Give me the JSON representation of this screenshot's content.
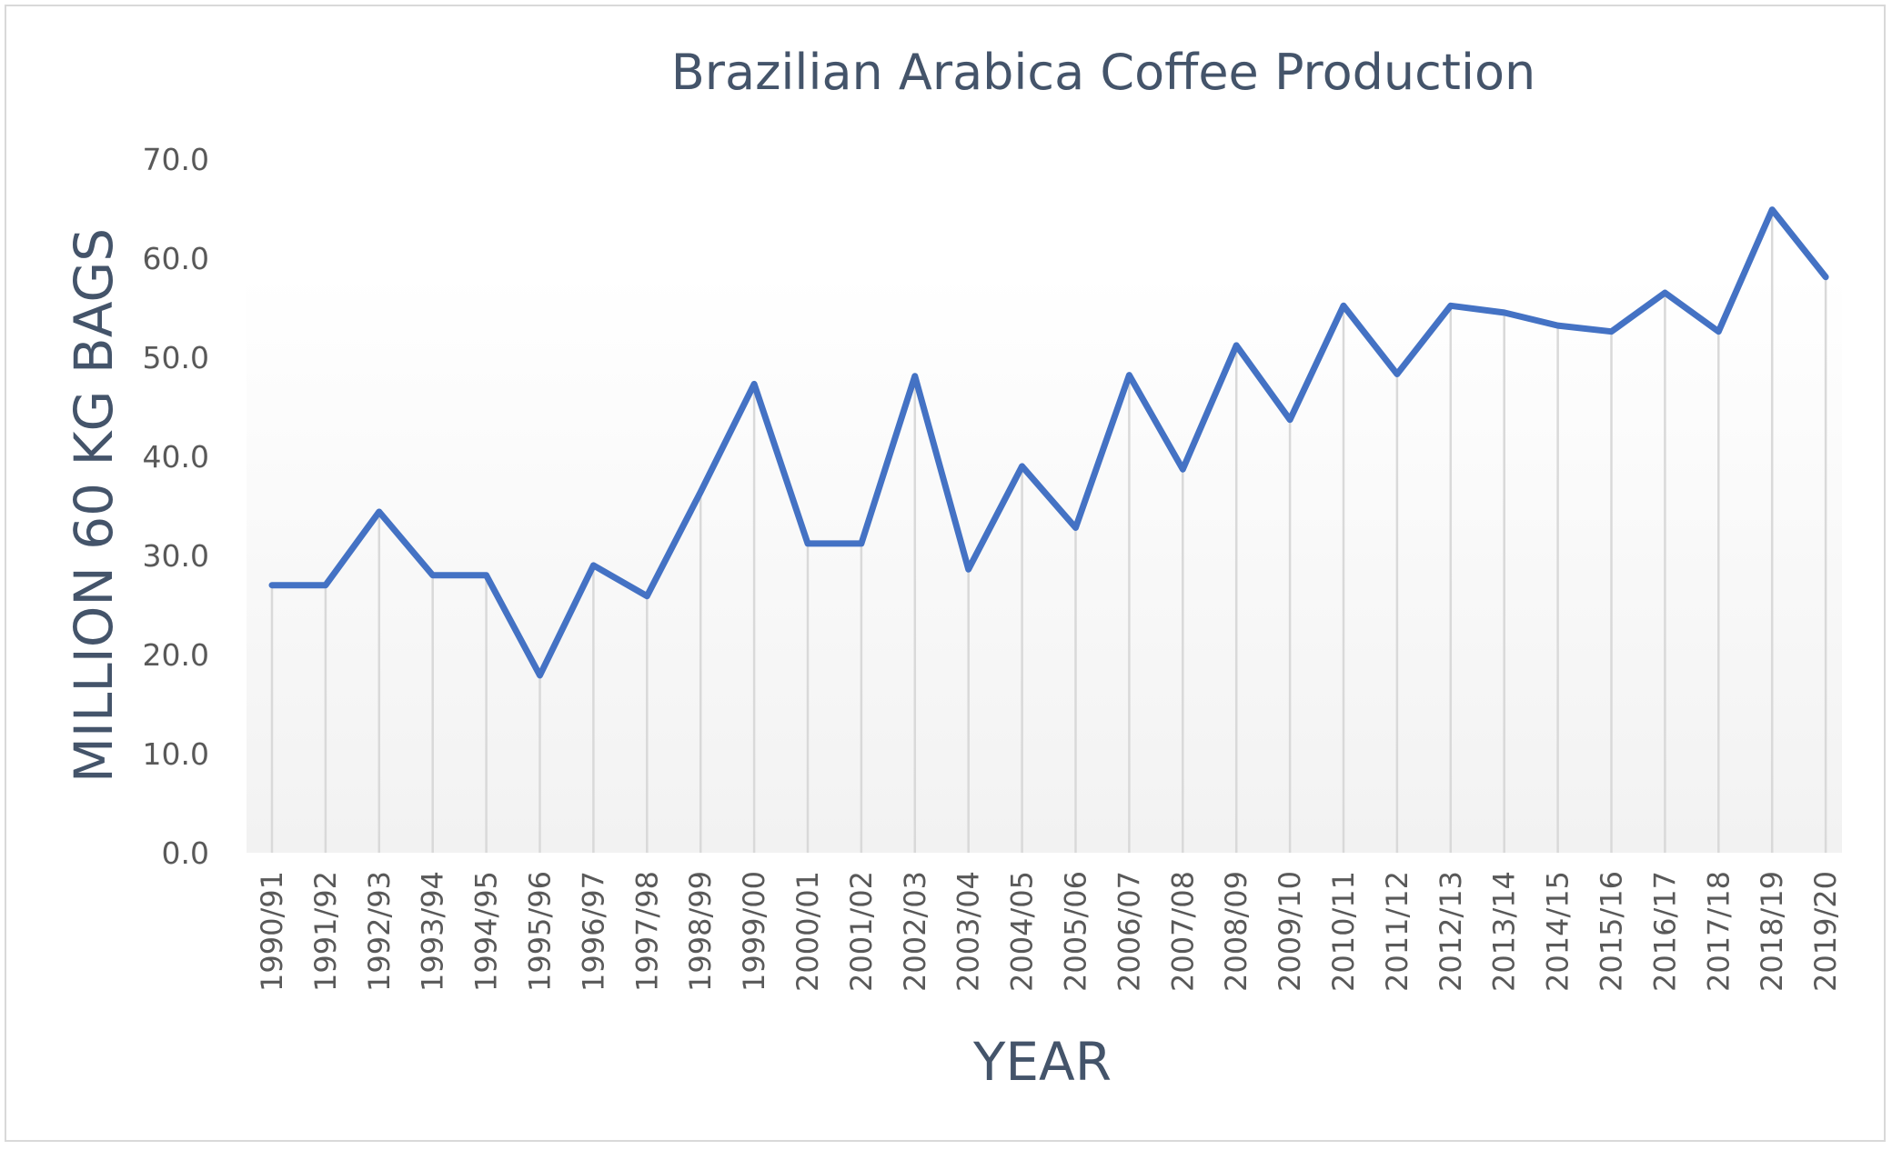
{
  "chart_data": {
    "type": "line",
    "title": "Brazilian Arabica Coffee Production",
    "xlabel": "YEAR",
    "ylabel": "MILLION 60 KG BAGS",
    "ylim": [
      0,
      70
    ],
    "yticks": [
      "0.0",
      "10.0",
      "20.0",
      "30.0",
      "40.0",
      "50.0",
      "60.0",
      "70.0"
    ],
    "grid": "vertical drop lines at each category",
    "legend": "none",
    "categories": [
      "1990/91",
      "1991/92",
      "1992/93",
      "1993/94",
      "1994/95",
      "1995/96",
      "1996/97",
      "1997/98",
      "1998/99",
      "1999/00",
      "2000/01",
      "2001/02",
      "2002/03",
      "2003/04",
      "2004/05",
      "2005/06",
      "2006/07",
      "2007/08",
      "2008/09",
      "2009/10",
      "2010/11",
      "2011/12",
      "2012/13",
      "2013/14",
      "2014/15",
      "2015/16",
      "2016/17",
      "2017/18",
      "2018/19",
      "2019/20"
    ],
    "series": [
      {
        "values": [
          27.0,
          27.0,
          34.4,
          28.0,
          28.0,
          17.9,
          29.0,
          25.9,
          36.4,
          47.3,
          31.2,
          31.2,
          48.1,
          28.6,
          39.0,
          32.8,
          48.2,
          38.7,
          51.2,
          43.7,
          55.2,
          48.3,
          55.2,
          54.5,
          53.2,
          52.6,
          56.5,
          52.6,
          64.9,
          58.1
        ],
        "color": "#4472c4"
      }
    ]
  },
  "colors": {
    "line": "#4472c4",
    "title": "#44546a",
    "tick_text": "#595959",
    "drop_lines": "#d9d9d9",
    "plot_gradient_top": "#ffffff",
    "plot_gradient_bottom": "#f2f2f2",
    "frame": "#d9d9d9"
  }
}
